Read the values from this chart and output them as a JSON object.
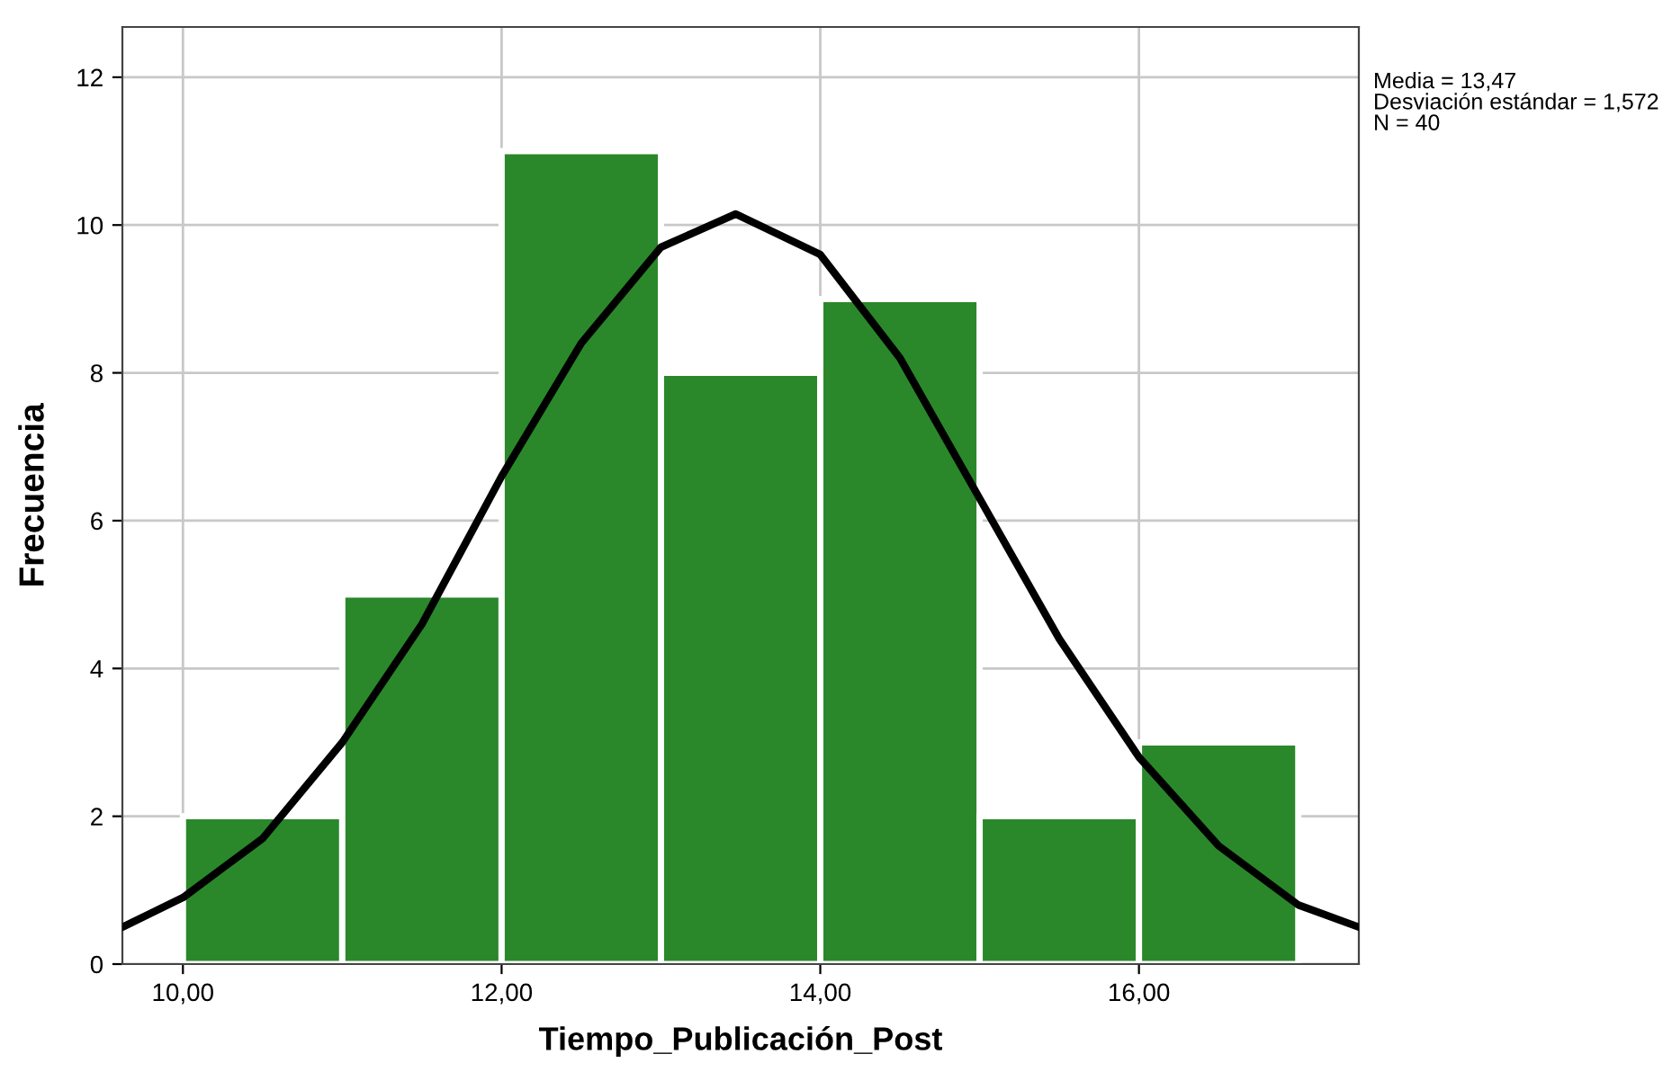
{
  "chart_data": {
    "type": "histogram",
    "xlabel": "Tiempo_Publicación_Post",
    "ylabel": "Frecuencia",
    "bins": [
      10,
      11,
      12,
      13,
      14,
      15,
      16,
      17
    ],
    "values": [
      2,
      5,
      11,
      8,
      9,
      2,
      3
    ],
    "color": "#2a882a",
    "series": [
      {
        "type": "line",
        "color": "#000000",
        "x": [
          9.62,
          10,
          10.5,
          11,
          11.5,
          12,
          12.5,
          13,
          13.47,
          14,
          14.5,
          15,
          15.5,
          16,
          16.5,
          17,
          17.38
        ],
        "values": [
          0.5,
          0.9,
          1.7,
          3.0,
          4.6,
          6.6,
          8.4,
          9.7,
          10.15,
          9.6,
          8.2,
          6.3,
          4.4,
          2.8,
          1.6,
          0.8,
          0.5
        ]
      }
    ],
    "xlim": [
      9.62,
      17.38
    ],
    "xticks": [
      {
        "value": 10,
        "label": "10,00"
      },
      {
        "value": 12,
        "label": "12,00"
      },
      {
        "value": 14,
        "label": "14,00"
      },
      {
        "value": 16,
        "label": "16,00"
      }
    ],
    "ylim": [
      0,
      12.68
    ],
    "yticks": [
      0,
      2,
      4,
      6,
      8,
      10,
      12
    ],
    "grid": true,
    "annotations": [
      "Media = 13,47",
      "Desviación estándar = 1,572",
      "N = 40"
    ]
  }
}
